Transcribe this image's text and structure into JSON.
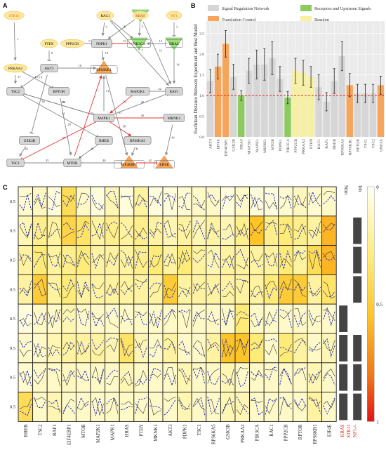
{
  "panel_a": {
    "letter": "A",
    "nodes": [
      {
        "id": "STK11",
        "label": "STK11",
        "shape": "ellipse",
        "fill": "#ffe89a",
        "text": "#e8702a"
      },
      {
        "id": "RAC1",
        "label": "RAC1",
        "shape": "ellipse",
        "fill": "#ffe89a",
        "text": "#000"
      },
      {
        "id": "KRAS",
        "label": "KRAS",
        "shape": "ellipse",
        "fill": "#ffe89a",
        "text": "#e8302a"
      },
      {
        "id": "NF1",
        "label": "NF1",
        "shape": "ellipse",
        "fill": "#ffe89a",
        "text": "#e8702a"
      },
      {
        "id": "PTEN",
        "label": "PTEN",
        "shape": "ellipse",
        "fill": "#ffe89a",
        "text": "#000"
      },
      {
        "id": "PPP2CB",
        "label": "PPP2CB",
        "shape": "ellipse",
        "fill": "#ffe89a",
        "text": "#000"
      },
      {
        "id": "PDPK1",
        "label": "PDPK1",
        "shape": "rect",
        "fill": "#d6d6d6",
        "text": "#000"
      },
      {
        "id": "PIK3CA",
        "label": "PIK3CA",
        "shape": "rect",
        "fill": "#d6d6d6",
        "text": "#000"
      },
      {
        "id": "HRAS",
        "label": "HRAS",
        "shape": "rect",
        "fill": "#d6d6d6",
        "text": "#000"
      },
      {
        "id": "PRKAA2",
        "label": "PRKAA2",
        "shape": "ellipse",
        "fill": "#ffe89a",
        "text": "#000"
      },
      {
        "id": "AKT3",
        "label": "AKT3",
        "shape": "rect",
        "fill": "#d6d6d6",
        "text": "#000"
      },
      {
        "id": "RPS6KB1",
        "label": "RPS6KB1",
        "shape": "rect",
        "fill": "#d6d6d6",
        "text": "#000"
      },
      {
        "id": "TSC2",
        "label": "TSC2",
        "shape": "rect",
        "fill": "#d6d6d6",
        "text": "#000"
      },
      {
        "id": "RPTOR",
        "label": "RPTOR",
        "shape": "rect",
        "fill": "#d6d6d6",
        "text": "#000"
      },
      {
        "id": "MAP2K1",
        "label": "MAP2K1",
        "shape": "rect",
        "fill": "#d6d6d6",
        "text": "#000"
      },
      {
        "id": "RAF1",
        "label": "RAF1",
        "shape": "rect",
        "fill": "#d6d6d6",
        "text": "#000"
      },
      {
        "id": "MAPK1",
        "label": "MAPK1",
        "shape": "rect",
        "fill": "#d6d6d6",
        "text": "#000"
      },
      {
        "id": "MKNK1",
        "label": "MKNK1",
        "shape": "rect",
        "fill": "#d6d6d6",
        "text": "#000"
      },
      {
        "id": "GSK3B",
        "label": "GSK3B",
        "shape": "rect",
        "fill": "#d6d6d6",
        "text": "#000"
      },
      {
        "id": "RHEB",
        "label": "RHEB",
        "shape": "rect",
        "fill": "#d6d6d6",
        "text": "#000"
      },
      {
        "id": "RPS6KA5",
        "label": "RPS6KA5",
        "shape": "rect",
        "fill": "#d6d6d6",
        "text": "#000"
      },
      {
        "id": "TSC1",
        "label": "TSC1",
        "shape": "rect",
        "fill": "#d6d6d6",
        "text": "#000"
      },
      {
        "id": "MTOR",
        "label": "MTOR",
        "shape": "rect",
        "fill": "#d6d6d6",
        "text": "#000"
      },
      {
        "id": "EIF4EBP1",
        "label": "EIF4EBP1",
        "shape": "rect",
        "fill": "#d6d6d6",
        "text": "#000"
      },
      {
        "id": "EIF4E",
        "label": "EIF4E",
        "shape": "rect",
        "fill": "#d6d6d6",
        "text": "#000"
      }
    ],
    "edges": [
      {
        "from": "STK11",
        "to": "PRKAA2",
        "n": "1",
        "kind": "act",
        "color": "#888"
      },
      {
        "from": "RAC1",
        "to": "PDPK1",
        "n": "4",
        "kind": "act",
        "color": "#888"
      },
      {
        "from": "RAC1",
        "to": "PIK3CA",
        "n": "6",
        "kind": "act",
        "color": "#888"
      },
      {
        "from": "RAC1",
        "to": "RAF1",
        "n": "7",
        "kind": "act",
        "color": "#888"
      },
      {
        "from": "KRAS",
        "to": "PIK3CA",
        "n": "5",
        "kind": "act",
        "color": "#888"
      },
      {
        "from": "KRAS",
        "to": "RAF1",
        "n": "11",
        "kind": "act",
        "color": "#888"
      },
      {
        "from": "KRAS",
        "to": "PDPK1",
        "n": "3",
        "kind": "act",
        "color": "#888"
      },
      {
        "from": "NF1",
        "to": "HRAS",
        "n": "2",
        "kind": "inh",
        "color": "#888"
      },
      {
        "from": "HRAS",
        "to": "PIK3CA",
        "n": "12",
        "kind": "act",
        "color": "#888"
      },
      {
        "from": "HRAS",
        "to": "RAF1",
        "n": "14",
        "kind": "act",
        "color": "#888"
      },
      {
        "from": "PTEN",
        "to": "AKT3",
        "n": "8",
        "kind": "inh",
        "color": "#888"
      },
      {
        "from": "PPP2CB",
        "to": "PDPK1",
        "n": "9",
        "kind": "inh",
        "color": "#888"
      },
      {
        "from": "PDPK1",
        "to": "RPS6KB1",
        "n": "10",
        "kind": "act",
        "color": "#888"
      },
      {
        "from": "PIK3CA",
        "to": "PDPK1",
        "n": "13",
        "kind": "act",
        "color": "#e8302a"
      },
      {
        "from": "PRKAA2",
        "to": "TSC2",
        "n": "17",
        "kind": "act",
        "color": "#888"
      },
      {
        "from": "PRKAA2",
        "to": "RPTOR",
        "n": "19",
        "kind": "inh",
        "color": "#888"
      },
      {
        "from": "AKT3",
        "to": "TSC2",
        "n": "15",
        "kind": "inh",
        "color": "#888"
      },
      {
        "from": "AKT3",
        "to": "GSK3B",
        "n": "16",
        "kind": "inh",
        "color": "#888"
      },
      {
        "from": "AKT3",
        "to": "RPS6KB1",
        "n": "18",
        "kind": "act",
        "color": "#888"
      },
      {
        "from": "MAPK1",
        "to": "RPS6KB1",
        "n": "21",
        "kind": "act",
        "color": "#888"
      },
      {
        "from": "MAP2K1",
        "to": "MAPK1",
        "n": "23",
        "kind": "act",
        "color": "#e8302a"
      },
      {
        "from": "RAF1",
        "to": "MAP2K1",
        "n": "22",
        "kind": "act",
        "color": "#888"
      },
      {
        "from": "TSC2",
        "to": "RHEB",
        "n": "24",
        "kind": "inh",
        "color": "#888"
      },
      {
        "from": "TSC2",
        "to": "MAPK1",
        "n": "25",
        "kind": "act",
        "color": "#888"
      },
      {
        "from": "RPTOR",
        "to": "MTOR",
        "n": "29",
        "kind": "act",
        "color": "#888"
      },
      {
        "from": "MAPK1",
        "to": "MKNK1",
        "n": "36",
        "kind": "act",
        "color": "#e8302a"
      },
      {
        "from": "MAPK1",
        "to": "RPS6KA5",
        "n": "38",
        "kind": "act",
        "color": "#e8302a"
      },
      {
        "from": "MAPK1",
        "to": "RAF1",
        "n": "30",
        "kind": "inh",
        "color": "#888"
      },
      {
        "from": "MAPK1",
        "to": "TSC2",
        "n": "34",
        "kind": "inh",
        "color": "#888"
      },
      {
        "from": "MAPK1",
        "to": "TSC1",
        "n": "37",
        "kind": "inh",
        "color": "#e8302a"
      },
      {
        "from": "GSK3B",
        "to": "TSC1",
        "n": "26",
        "kind": "act",
        "color": "#888"
      },
      {
        "from": "RHEB",
        "to": "MTOR",
        "n": "39",
        "kind": "act",
        "color": "#888"
      },
      {
        "from": "TSC1",
        "to": "MTOR",
        "n": "35",
        "kind": "inh",
        "color": "#888"
      },
      {
        "from": "MTOR",
        "to": "EIF4EBP1",
        "n": "40",
        "kind": "inh",
        "color": "#888"
      },
      {
        "from": "MTOR",
        "to": "RPS6KB1",
        "n": "20",
        "kind": "act",
        "color": "#e8302a"
      },
      {
        "from": "RPS6KA5",
        "to": "EIF4EBP1",
        "n": "41",
        "kind": "act",
        "color": "#888"
      },
      {
        "from": "MKNK1",
        "to": "EIF4E",
        "n": "43",
        "kind": "act",
        "color": "#888"
      },
      {
        "from": "EIF4EBP1",
        "to": "EIF4E",
        "n": "42",
        "kind": "inh",
        "color": "#e8302a"
      },
      {
        "from": "RPS6KB1",
        "to": "EIF4EBP1",
        "n": "31",
        "kind": "act",
        "color": "#888"
      }
    ]
  },
  "panel_b": {
    "letter": "B",
    "legend": [
      {
        "label": "Signal Regulation Network",
        "color": "#d6d6d6"
      },
      {
        "label": "Receptors and Upstream Signals",
        "color": "#8ccc5e"
      },
      {
        "label": "Translation Control",
        "color": "#f7a55a"
      },
      {
        "label": "Regulon",
        "color": "#f7f0a0"
      }
    ],
    "chart_data": {
      "type": "bar",
      "ylabel": "Euclidean Distance Between Experiment and Best Model",
      "ylim": [
        0,
        2.8
      ],
      "yticks": [
        "0.0",
        "0.5",
        "1.0",
        "1.5",
        "2.0",
        "2.5"
      ],
      "threshold": 1.0,
      "categories": [
        "AKT3",
        "EIF4E",
        "EIF4EBP1",
        "GSK3B",
        "HRAS",
        "MAP2K1",
        "MAPK1",
        "MKNK1",
        "MTOR",
        "PDPK1",
        "PIK3CA",
        "PPP2CB",
        "PRKAA2",
        "PTEN",
        "RAC1",
        "RAF1",
        "RHEB",
        "RPS6KA5",
        "RPS6KB1",
        "RPTOR",
        "TSC1",
        "TSC2",
        "UBE3A"
      ],
      "values": [
        1.35,
        1.7,
        2.25,
        1.45,
        1.0,
        1.6,
        1.75,
        1.75,
        1.9,
        1.4,
        0.95,
        1.6,
        1.55,
        1.45,
        1.2,
        0.85,
        1.35,
        1.95,
        1.25,
        1.05,
        1.05,
        1.05,
        1.25
      ],
      "errors": [
        0.28,
        0.3,
        0.32,
        0.3,
        0.12,
        0.3,
        0.35,
        0.38,
        0.4,
        0.3,
        0.15,
        0.3,
        0.3,
        0.25,
        0.3,
        0.22,
        0.3,
        0.35,
        0.28,
        0.22,
        0.22,
        0.22,
        0.22
      ],
      "groups": [
        "S",
        "T",
        "T",
        "S",
        "R",
        "S",
        "S",
        "S",
        "S",
        "S",
        "R",
        "G",
        "G",
        "G",
        "S",
        "S",
        "S",
        "S",
        "T",
        "S",
        "S",
        "S",
        "T"
      ]
    }
  },
  "panel_c": {
    "letter": "C",
    "columns": [
      "RHEB",
      "TSC2",
      "RAF1",
      "EIF4EBP1",
      "MTOR",
      "MAP2K1",
      "MAPK1",
      "HRAS",
      "PTEN",
      "MKNK1",
      "AKT3",
      "PDPK1",
      "TSC1",
      "RPS6KA5",
      "GSK3B",
      "PRKAA2",
      "PIK3CA",
      "RAC1",
      "PPP2CB",
      "RPTOR",
      "RPS6KB1",
      "EIF4E"
    ],
    "row_tick": "0.5",
    "side_labels": {
      "stim": "Stim",
      "inh": "Inh"
    },
    "row_labels": [
      "KRAS",
      "STK11",
      "NF1-/-"
    ],
    "colorbar_ticks": [
      "0",
      "0.5",
      "1"
    ],
    "heat": [
      [
        0.08,
        0.12,
        0.05,
        0.4,
        0.1,
        0.05,
        0.15,
        0.05,
        0.2,
        0.05,
        0.05,
        0.08,
        0.1,
        0.1,
        0.05,
        0.1,
        0.05,
        0.05,
        0.08,
        0.12,
        0.08,
        0.1
      ],
      [
        0.15,
        0.25,
        0.2,
        0.45,
        0.35,
        0.2,
        0.25,
        0.2,
        0.25,
        0.2,
        0.15,
        0.2,
        0.15,
        0.2,
        0.15,
        0.25,
        0.55,
        0.25,
        0.3,
        0.25,
        0.2,
        0.6
      ],
      [
        0.2,
        0.3,
        0.2,
        0.25,
        0.3,
        0.2,
        0.2,
        0.2,
        0.25,
        0.3,
        0.2,
        0.3,
        0.2,
        0.15,
        0.2,
        0.2,
        0.2,
        0.2,
        0.3,
        0.2,
        0.4,
        0.6
      ],
      [
        0.2,
        0.5,
        0.2,
        0.3,
        0.2,
        0.2,
        0.2,
        0.2,
        0.2,
        0.2,
        0.5,
        0.2,
        0.2,
        0.2,
        0.2,
        0.2,
        0.2,
        0.3,
        0.5,
        0.5,
        0.2,
        0.35
      ],
      [
        0.05,
        0.1,
        0.1,
        0.15,
        0.1,
        0.1,
        0.1,
        0.1,
        0.1,
        0.1,
        0.1,
        0.1,
        0.1,
        0.1,
        0.1,
        0.3,
        0.1,
        0.1,
        0.1,
        0.1,
        0.1,
        0.1
      ],
      [
        0.1,
        0.1,
        0.15,
        0.2,
        0.2,
        0.2,
        0.15,
        0.35,
        0.15,
        0.1,
        0.2,
        0.1,
        0.1,
        0.2,
        0.55,
        0.55,
        0.3,
        0.1,
        0.3,
        0.2,
        0.1,
        0.15
      ],
      [
        0.08,
        0.1,
        0.1,
        0.12,
        0.1,
        0.1,
        0.1,
        0.15,
        0.1,
        0.1,
        0.1,
        0.15,
        0.1,
        0.1,
        0.15,
        0.1,
        0.1,
        0.1,
        0.1,
        0.1,
        0.15,
        0.1
      ],
      [
        0.4,
        0.1,
        0.15,
        0.1,
        0.1,
        0.1,
        0.1,
        0.1,
        0.1,
        0.1,
        0.1,
        0.15,
        0.1,
        0.1,
        0.15,
        0.15,
        0.1,
        0.1,
        0.1,
        0.1,
        0.2,
        0.1
      ]
    ],
    "stim_on": [
      0,
      0,
      0,
      0,
      1,
      1,
      1,
      1
    ],
    "inh_on": [
      0,
      1,
      1,
      1,
      0,
      1,
      1,
      1
    ]
  }
}
